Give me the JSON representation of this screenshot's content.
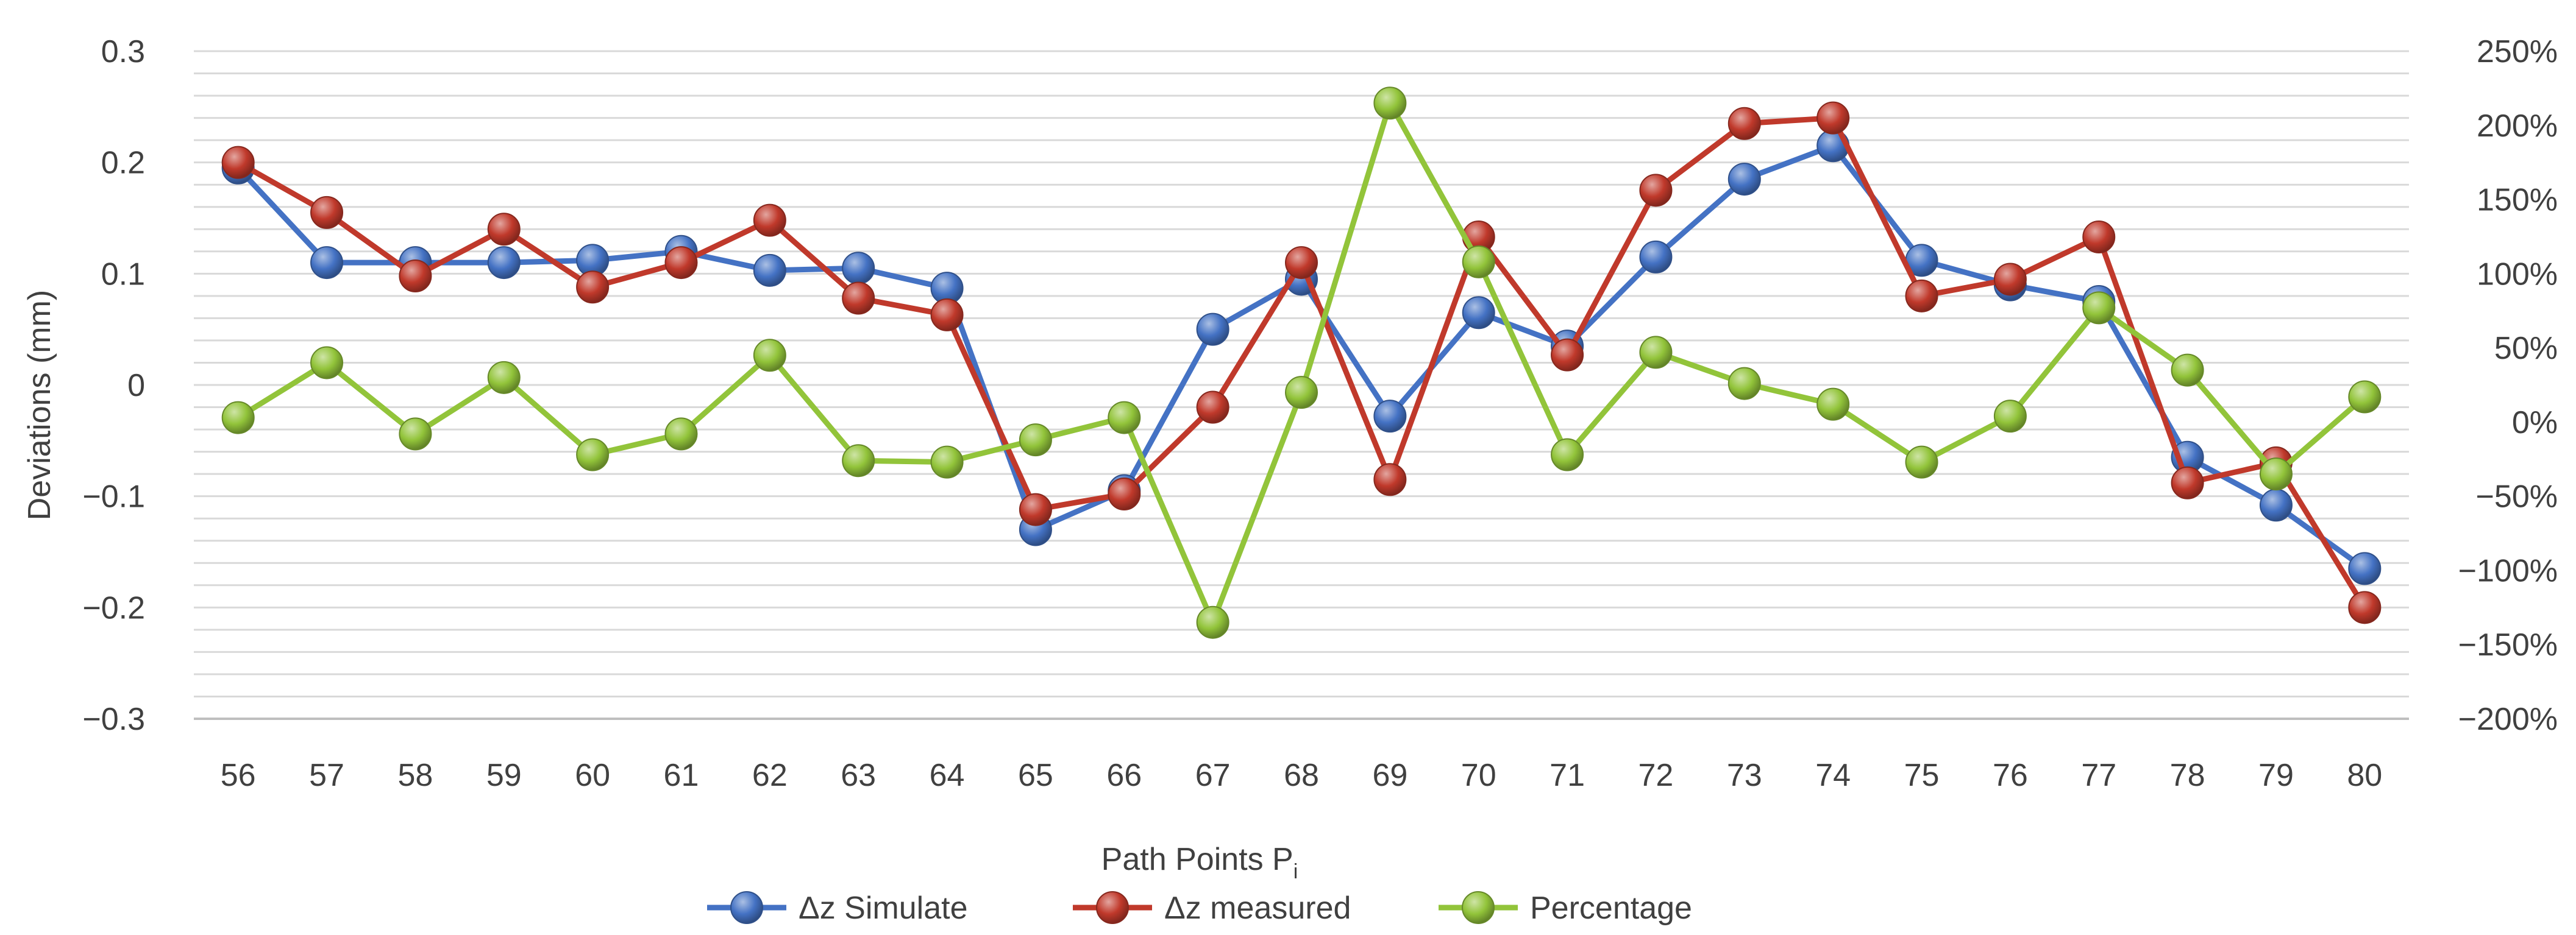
{
  "chart_data": {
    "type": "line",
    "categories": [
      "56",
      "57",
      "58",
      "59",
      "60",
      "61",
      "62",
      "63",
      "64",
      "65",
      "66",
      "67",
      "68",
      "69",
      "70",
      "71",
      "72",
      "73",
      "74",
      "75",
      "76",
      "77",
      "78",
      "79",
      "80"
    ],
    "y_left": {
      "label": "Deviations (mm)",
      "ylim": [
        -0.3,
        0.3
      ],
      "ticks": [
        0.3,
        0.2,
        0.1,
        0,
        -0.1,
        -0.2,
        -0.3
      ],
      "tick_labels": [
        "0.3",
        "0.2",
        "0.1",
        "0",
        "−0.1",
        "−0.2",
        "−0.3"
      ]
    },
    "y_right": {
      "ylim": [
        -200,
        250
      ],
      "ticks": [
        250,
        200,
        150,
        100,
        50,
        0,
        -50,
        -100,
        -150,
        -200
      ],
      "tick_labels": [
        "250%",
        "200%",
        "150%",
        "100%",
        "50%",
        "0%",
        "−50%",
        "−100%",
        "−150%",
        "−200%"
      ]
    },
    "xlabel": "Path Points P",
    "xlabel_subscript": "i",
    "grid": true,
    "legend_position": "bottom",
    "series": [
      {
        "name": "Δz Simulate",
        "axis": "left",
        "color": "#4472c4",
        "values": [
          0.195,
          0.11,
          0.11,
          0.11,
          0.112,
          0.12,
          0.103,
          0.105,
          0.087,
          -0.13,
          -0.095,
          0.05,
          0.095,
          -0.028,
          0.065,
          0.035,
          0.115,
          0.185,
          0.215,
          0.112,
          0.09,
          0.075,
          -0.065,
          -0.108,
          -0.165
        ]
      },
      {
        "name": "Δz measured",
        "axis": "left",
        "color": "#c0392b",
        "values": [
          0.2,
          0.155,
          0.098,
          0.14,
          0.088,
          0.11,
          0.148,
          0.078,
          0.063,
          -0.112,
          -0.098,
          -0.02,
          0.11,
          -0.085,
          0.133,
          0.027,
          0.175,
          0.235,
          0.24,
          0.08,
          0.095,
          0.133,
          -0.088,
          -0.07,
          -0.2
        ]
      },
      {
        "name": "Percentage",
        "axis": "right",
        "color": "#92c43a",
        "values": [
          3,
          40,
          -8,
          30,
          -22,
          -8,
          45,
          -26,
          -27,
          -12,
          3,
          -135,
          20,
          215,
          108,
          -22,
          47,
          26,
          12,
          -27,
          4,
          77,
          35,
          -35,
          17
        ]
      }
    ]
  }
}
